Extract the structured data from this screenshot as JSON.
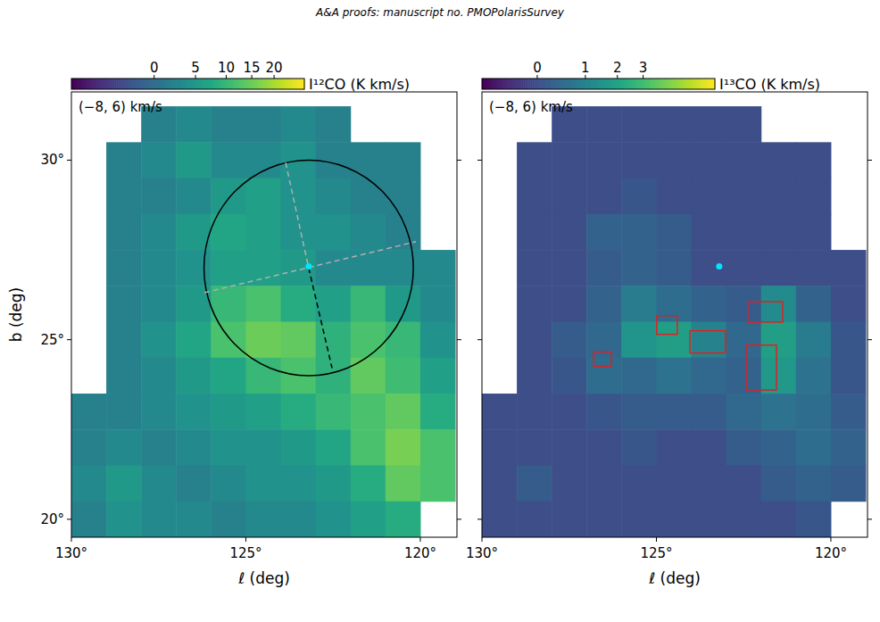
{
  "header": "A&A proofs: manuscript no. PMOPolarisSurvey",
  "chart_data": [
    {
      "type": "heatmap",
      "title": "(−8, 6) km/s",
      "x_label": "ℓ (deg)",
      "y_label": "b (deg)",
      "xlim": [
        130,
        118.95
      ],
      "ylim": [
        19.5,
        31.9
      ],
      "xticks": [
        {
          "value": 130,
          "label": "130°"
        },
        {
          "value": 125,
          "label": "125°"
        },
        {
          "value": 120,
          "label": "120°"
        }
      ],
      "yticks": [
        {
          "value": 20,
          "label": "20°"
        },
        {
          "value": 25,
          "label": "25°"
        },
        {
          "value": 30,
          "label": "30°"
        }
      ],
      "x": [
        129.5,
        128.5,
        127.5,
        126.5,
        125.5,
        124.5,
        123.5,
        122.5,
        121.5,
        120.5,
        119.5
      ],
      "y": [
        31,
        30,
        29,
        28,
        27,
        26,
        25,
        24,
        23,
        22,
        21,
        20
      ],
      "cells": [
        [
          null,
          null,
          2,
          3,
          2,
          2,
          3,
          2,
          null,
          null,
          null
        ],
        [
          null,
          2,
          3,
          5,
          3,
          3,
          4,
          2,
          2,
          2,
          null
        ],
        [
          null,
          2,
          2,
          3,
          5,
          6,
          4,
          3,
          2,
          2,
          null
        ],
        [
          null,
          2,
          3,
          5,
          7,
          6,
          4,
          4,
          3,
          2,
          null
        ],
        [
          null,
          2,
          3,
          4,
          6,
          6,
          5,
          3,
          3,
          3,
          3
        ],
        [
          null,
          2,
          3,
          5,
          10,
          12,
          8,
          6,
          10,
          5,
          3
        ],
        [
          null,
          2,
          4,
          7,
          12,
          15,
          14,
          9,
          12,
          10,
          4
        ],
        [
          null,
          2,
          3,
          5,
          7,
          10,
          12,
          9,
          14,
          11,
          6
        ],
        [
          2,
          2,
          3,
          4,
          5,
          6,
          8,
          10,
          12,
          14,
          8
        ],
        [
          2,
          3,
          2,
          3,
          4,
          4,
          5,
          7,
          12,
          16,
          12
        ],
        [
          3,
          5,
          3,
          2,
          3,
          4,
          4,
          5,
          8,
          14,
          12
        ],
        [
          2,
          4,
          3,
          3,
          2,
          3,
          3,
          4,
          6,
          8,
          null
        ]
      ],
      "colorbar": {
        "label": "I¹²CO (K km/s)",
        "range": [
          -4,
          27.7
        ],
        "ticks": [
          0,
          5,
          10,
          15,
          20
        ]
      },
      "overlays": {
        "circles": [
          {
            "l": 123.2,
            "b": 27.0,
            "radius": 3.0,
            "color": "#000000"
          }
        ],
        "lines": [
          {
            "from": [
              123.86,
              29.93
            ],
            "to": [
              123.2,
              27.0
            ],
            "color": "#b0b0b0",
            "line_style": "dashed"
          },
          {
            "from": [
              123.2,
              27.0
            ],
            "to": [
              122.53,
              24.21
            ],
            "color": "#000000",
            "line_style": "dashed"
          },
          {
            "from": [
              126.19,
              26.31
            ],
            "to": [
              120.13,
              27.73
            ],
            "color": "#b0b0b0",
            "line_style": "dashed"
          }
        ],
        "points": [
          {
            "l": 123.2,
            "b": 27.04,
            "color": "#00e5ff"
          }
        ],
        "boxes": []
      }
    },
    {
      "type": "heatmap",
      "title": "(−8, 6) km/s",
      "x_label": "ℓ (deg)",
      "tick_labels": "x",
      "xlim": [
        130,
        118.95
      ],
      "ylim": [
        19.5,
        31.9
      ],
      "xticks": [
        {
          "value": 130,
          "label": "130°"
        },
        {
          "value": 125,
          "label": "125°"
        },
        {
          "value": 120,
          "label": "120°"
        }
      ],
      "yticks": [
        {
          "value": 20,
          "label": "20°"
        },
        {
          "value": 25,
          "label": "25°"
        },
        {
          "value": 30,
          "label": "30°"
        }
      ],
      "x": [
        129.5,
        128.5,
        127.5,
        126.5,
        125.5,
        124.5,
        123.5,
        122.5,
        121.5,
        120.5,
        119.5
      ],
      "y": [
        31,
        30,
        29,
        28,
        27,
        26,
        25,
        24,
        23,
        22,
        21,
        20
      ],
      "cells": [
        [
          null,
          null,
          0,
          0,
          0,
          0,
          0,
          0,
          null,
          null,
          null
        ],
        [
          null,
          0,
          0,
          0,
          0,
          0,
          0,
          0,
          0,
          0,
          null
        ],
        [
          null,
          0,
          0,
          0,
          0.1,
          0,
          0,
          0,
          0,
          0,
          null
        ],
        [
          null,
          0,
          0,
          0.3,
          0.3,
          0.2,
          0,
          0,
          0,
          0,
          null
        ],
        [
          null,
          0,
          0,
          0.2,
          0.3,
          0.2,
          0,
          0,
          0,
          0,
          0
        ],
        [
          null,
          0,
          0,
          0.3,
          0.8,
          0.5,
          0.3,
          0.2,
          1.2,
          0.3,
          0
        ],
        [
          null,
          0,
          0.2,
          0.4,
          1.5,
          1.8,
          1.0,
          0.4,
          1.8,
          0.8,
          0.1
        ],
        [
          null,
          0,
          0.1,
          0.5,
          0.4,
          0.6,
          0.4,
          0.3,
          1.6,
          0.6,
          0.1
        ],
        [
          0,
          0,
          0,
          0.1,
          0.2,
          0.2,
          0.2,
          0.4,
          0.6,
          0.5,
          0.2
        ],
        [
          0,
          0,
          0,
          0,
          0.1,
          0,
          0,
          0.2,
          0.3,
          0.5,
          0.3
        ],
        [
          0,
          0.2,
          0,
          0,
          0,
          0,
          0,
          0,
          0.2,
          0.3,
          0.2
        ],
        [
          0,
          0,
          0,
          0,
          0,
          0,
          0,
          0,
          0,
          0.1,
          null
        ]
      ],
      "colorbar": {
        "label": "I¹³CO (K km/s)",
        "range": [
          -0.4,
          6.7
        ],
        "ticks": [
          0,
          1,
          2,
          3
        ]
      },
      "overlays": {
        "circles": [],
        "lines": [],
        "points": [
          {
            "l": 123.2,
            "b": 27.04,
            "color": "#00e5ff"
          }
        ],
        "boxes": [
          {
            "l": [
              122.38,
              121.38
            ],
            "b": [
              25.49,
              26.06
            ],
            "color": "#e02020"
          },
          {
            "l": [
              124.99,
              124.4
            ],
            "b": [
              25.15,
              25.67
            ],
            "color": "#e02020"
          },
          {
            "l": [
              124.04,
              123.02
            ],
            "b": [
              24.63,
              25.25
            ],
            "color": "#e02020"
          },
          {
            "l": [
              122.43,
              121.56
            ],
            "b": [
              23.6,
              24.85
            ],
            "color": "#e02020"
          },
          {
            "l": [
              126.8,
              126.29
            ],
            "b": [
              24.26,
              24.66
            ],
            "color": "#e02020"
          }
        ]
      }
    }
  ]
}
